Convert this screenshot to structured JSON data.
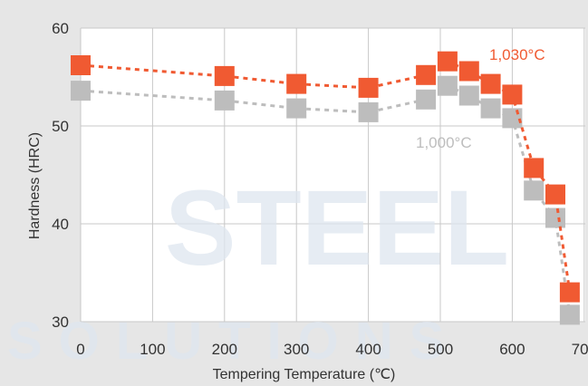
{
  "colors": {
    "background": "#e6e6e6",
    "plot_background": "#ffffff",
    "grid": "#c8c8c8",
    "series_1030": "#f05a32",
    "series_1000": "#bdbdbd",
    "watermark": "#dde6ef"
  },
  "watermark": {
    "line1": "STEEL",
    "line2": "SOLUTIONS"
  },
  "chart_data": {
    "type": "line",
    "title": "",
    "xlabel": "Tempering Temperature (℃)",
    "ylabel": "Hardness (HRC)",
    "xlim": [
      0,
      700
    ],
    "ylim": [
      30,
      60
    ],
    "x_ticks": [
      "0",
      "100",
      "200",
      "300",
      "400",
      "500",
      "600",
      "700"
    ],
    "y_ticks": [
      "30",
      "40",
      "50",
      "60"
    ],
    "grid": true,
    "line_style": "dashed",
    "marker": "square",
    "series": [
      {
        "name": "1,030°C",
        "color": "#f05a32",
        "x": [
          0,
          200,
          300,
          400,
          480,
          510,
          540,
          570,
          600,
          630,
          660,
          680
        ],
        "y": [
          56.2,
          55.1,
          54.3,
          53.9,
          55.2,
          56.6,
          55.6,
          54.3,
          53.2,
          45.7,
          43.0,
          33.0
        ]
      },
      {
        "name": "1,000°C",
        "color": "#bdbdbd",
        "x": [
          0,
          200,
          300,
          400,
          480,
          510,
          540,
          570,
          600,
          630,
          660,
          680
        ],
        "y": [
          53.6,
          52.6,
          51.8,
          51.4,
          52.7,
          54.1,
          53.1,
          51.8,
          50.8,
          43.4,
          40.6,
          30.7
        ]
      }
    ]
  }
}
